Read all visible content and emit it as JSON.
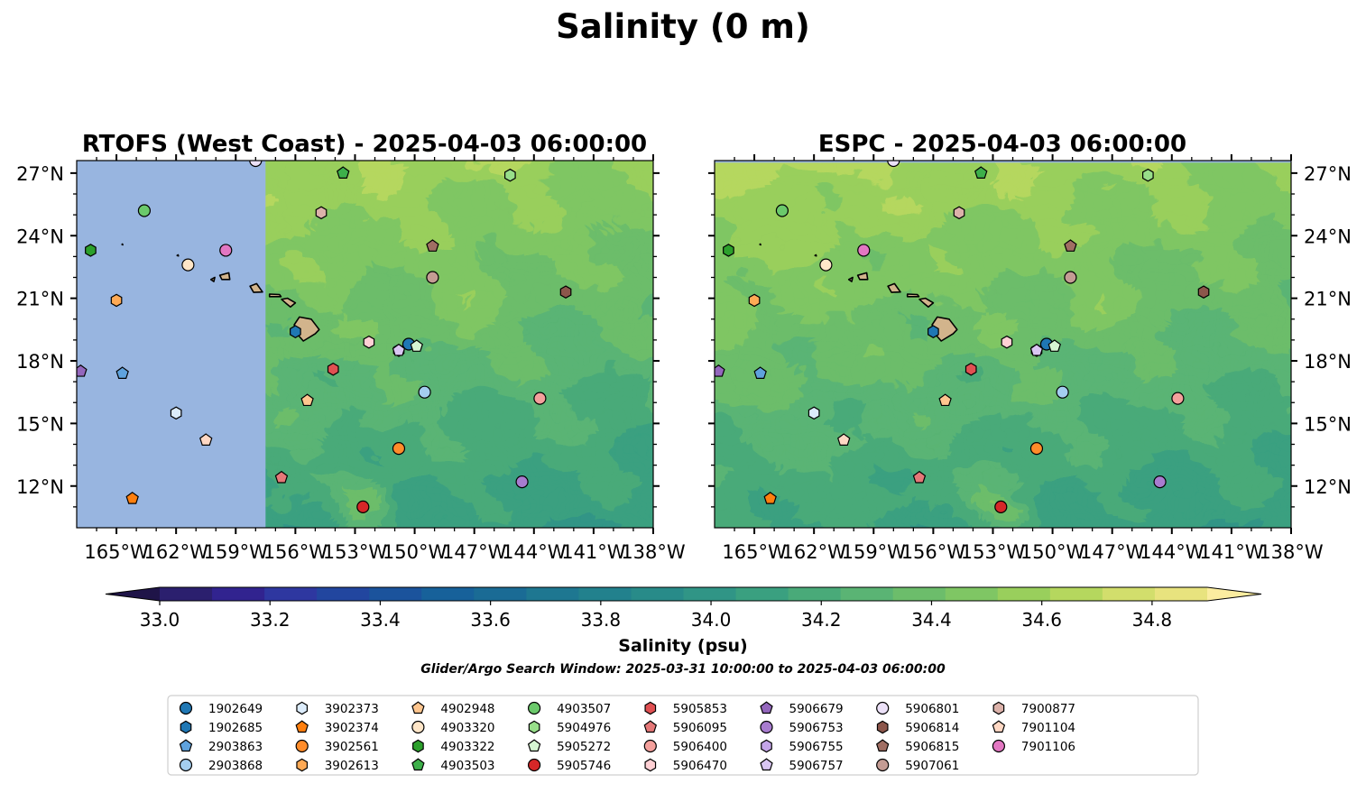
{
  "chart_data": {
    "type": "map",
    "title": "Salinity (0 m)",
    "panels": [
      {
        "title": "RTOFS (West Coast) - 2025-04-03 06:00:00",
        "missing_west_of": -157.5
      },
      {
        "title": "ESPC - 2025-04-03 06:00:00",
        "missing_north_of": 27.5
      }
    ],
    "lon_range": [
      -167,
      -138
    ],
    "lat_range": [
      10,
      27.6
    ],
    "x_ticks": [
      -165,
      -162,
      -159,
      -156,
      -153,
      -150,
      -147,
      -144,
      -141,
      -138
    ],
    "x_tick_labels": [
      "165°W",
      "162°W",
      "159°W",
      "156°W",
      "153°W",
      "150°W",
      "147°W",
      "144°W",
      "141°W",
      "138°W"
    ],
    "y_ticks": [
      12,
      15,
      18,
      21,
      24,
      27
    ],
    "y_tick_labels": [
      "12°N",
      "15°N",
      "18°N",
      "21°N",
      "24°N",
      "27°N"
    ],
    "colorbar": {
      "label": "Salinity (psu)",
      "vmin": 33.0,
      "vmax": 34.9,
      "step": 0.1,
      "extend": "both",
      "ticks": [
        33.0,
        33.2,
        33.4,
        33.6,
        33.8,
        34.0,
        34.2,
        34.4,
        34.6,
        34.8
      ],
      "tick_labels": [
        "33.0",
        "33.2",
        "33.4",
        "33.6",
        "33.8",
        "34.0",
        "34.2",
        "34.4",
        "34.6",
        "34.8"
      ],
      "colors": [
        "#2b1f6e",
        "#31238f",
        "#2e37a0",
        "#22469f",
        "#1b539c",
        "#17619a",
        "#1a6b95",
        "#1e7791",
        "#22818d",
        "#288b89",
        "#309586",
        "#3aa080",
        "#49aa79",
        "#5ab474",
        "#6cbd6b",
        "#7fc664",
        "#99cf5c",
        "#b5d75e",
        "#d2de6c",
        "#e8e37e"
      ],
      "under_color": "#1f1448",
      "over_color": "#fbeda0"
    },
    "land_color": "#d2b48c",
    "missing_color": "#98b5e0",
    "subtitle": "Glider/Argo Search Window: 2025-03-31 10:00:00 to 2025-04-03 06:00:00",
    "series": [
      {
        "name": "1902649",
        "marker": "circle",
        "color": "#1f77b4",
        "lon": -150.3,
        "lat": 18.8
      },
      {
        "name": "1902685",
        "marker": "hexagon",
        "color": "#1f77b4",
        "lon": -156.0,
        "lat": 19.4
      },
      {
        "name": "2903863",
        "marker": "pentagon",
        "color": "#5fa2dd",
        "lon": -164.7,
        "lat": 17.4
      },
      {
        "name": "2903868",
        "marker": "circle",
        "color": "#a4cef0",
        "lon": -149.5,
        "lat": 16.5
      },
      {
        "name": "3902373",
        "marker": "hexagon",
        "color": "#dcecfb",
        "lon": -162.0,
        "lat": 15.5
      },
      {
        "name": "3902374",
        "marker": "pentagon",
        "color": "#ff7f0e",
        "lon": -164.2,
        "lat": 11.4
      },
      {
        "name": "3902561",
        "marker": "circle",
        "color": "#ff8c2a",
        "lon": -150.8,
        "lat": 13.8
      },
      {
        "name": "3902613",
        "marker": "hexagon",
        "color": "#ffaa55",
        "lon": -165.0,
        "lat": 20.9
      },
      {
        "name": "4902948",
        "marker": "pentagon",
        "color": "#ffc68f",
        "lon": -155.4,
        "lat": 16.1
      },
      {
        "name": "4903320",
        "marker": "circle",
        "color": "#ffe6c8",
        "lon": -161.4,
        "lat": 22.6
      },
      {
        "name": "4903322",
        "marker": "hexagon",
        "color": "#2ca02c",
        "lon": -166.3,
        "lat": 23.3
      },
      {
        "name": "4903503",
        "marker": "pentagon",
        "color": "#3db04a",
        "lon": -153.6,
        "lat": 27.0
      },
      {
        "name": "4903507",
        "marker": "circle",
        "color": "#6bc96b",
        "lon": -163.6,
        "lat": 25.2
      },
      {
        "name": "5904976",
        "marker": "hexagon",
        "color": "#98df8a",
        "lon": -145.2,
        "lat": 26.9
      },
      {
        "name": "5905272",
        "marker": "pentagon",
        "color": "#d6f6d3",
        "lon": -149.9,
        "lat": 18.7
      },
      {
        "name": "5905746",
        "marker": "circle",
        "color": "#d62728",
        "lon": -152.6,
        "lat": 11.0
      },
      {
        "name": "5905853",
        "marker": "hexagon",
        "color": "#e05052",
        "lon": -154.1,
        "lat": 17.6
      },
      {
        "name": "5906095",
        "marker": "pentagon",
        "color": "#e57878",
        "lon": -156.7,
        "lat": 12.4
      },
      {
        "name": "5906400",
        "marker": "circle",
        "color": "#f4a09c",
        "lon": -143.7,
        "lat": 16.2
      },
      {
        "name": "5906470",
        "marker": "hexagon",
        "color": "#ffd0d4",
        "lon": -152.3,
        "lat": 18.9
      },
      {
        "name": "5906679",
        "marker": "pentagon",
        "color": "#9467bd",
        "lon": -166.8,
        "lat": 17.5
      },
      {
        "name": "5906753",
        "marker": "circle",
        "color": "#a87ccf",
        "lon": -144.6,
        "lat": 12.2
      },
      {
        "name": "5906755",
        "marker": "hexagon",
        "color": "#c4a5e8",
        "lon": -150.8,
        "lat": 18.5
      },
      {
        "name": "5906757",
        "marker": "pentagon",
        "color": "#d9c6f2",
        "lon": -150.8,
        "lat": 18.5
      },
      {
        "name": "5906801",
        "marker": "circle",
        "color": "#ece1f8",
        "lon": -158.0,
        "lat": 27.6
      },
      {
        "name": "5906814",
        "marker": "hexagon",
        "color": "#8c564b",
        "lon": -142.4,
        "lat": 21.3
      },
      {
        "name": "5906815",
        "marker": "pentagon",
        "color": "#a06e63",
        "lon": -149.1,
        "lat": 23.5
      },
      {
        "name": "5907061",
        "marker": "circle",
        "color": "#c49c94",
        "lon": -149.1,
        "lat": 22.0
      },
      {
        "name": "7900877",
        "marker": "hexagon",
        "color": "#dcb2aa",
        "lon": -154.7,
        "lat": 25.1
      },
      {
        "name": "7901104",
        "marker": "pentagon",
        "color": "#ffd8c4",
        "lon": -160.5,
        "lat": 14.2
      },
      {
        "name": "7901106",
        "marker": "circle",
        "color": "#e377c2",
        "lon": -159.5,
        "lat": 23.3
      }
    ]
  }
}
